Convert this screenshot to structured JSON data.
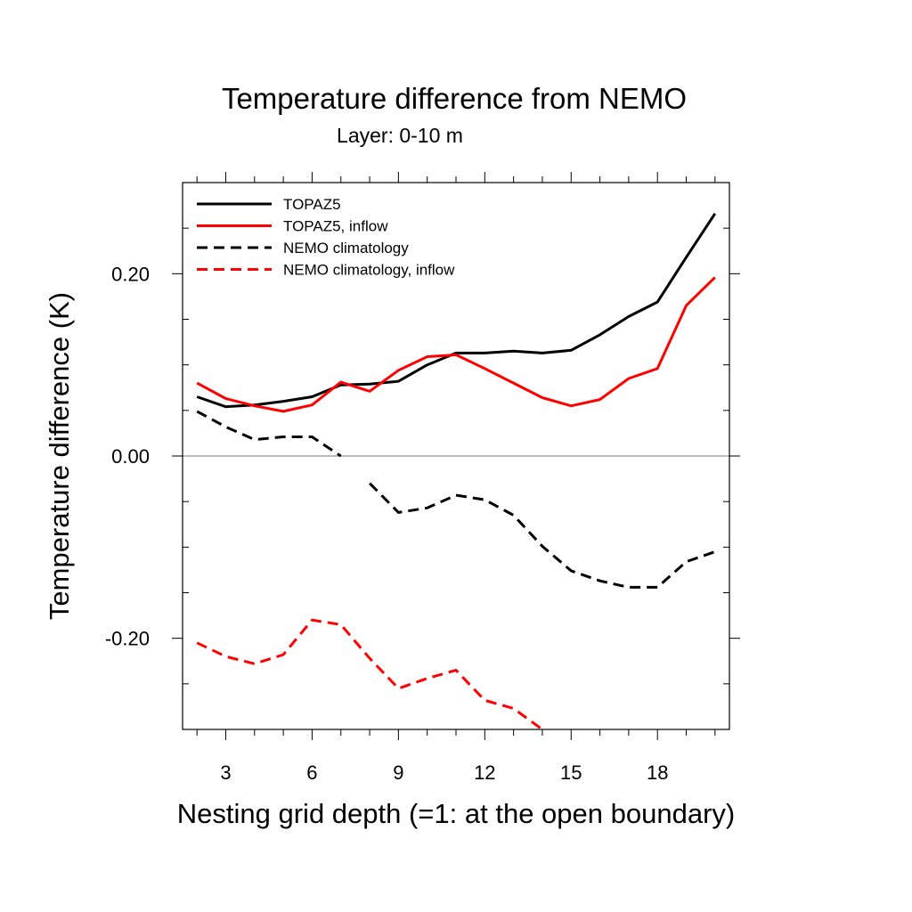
{
  "chart_data": {
    "type": "line",
    "title": "Temperature difference from NEMO",
    "subtitle": "Layer: 0-10 m",
    "xlabel": "Nesting grid depth (=1: at the open boundary)",
    "ylabel": "Temperature difference (K)",
    "xlim": [
      1.5,
      20.5
    ],
    "ylim": [
      -0.3,
      0.3
    ],
    "x_ticks": [
      3,
      6,
      9,
      12,
      15,
      18
    ],
    "x_tick_labels": [
      "3",
      "6",
      "9",
      "12",
      "15",
      "18"
    ],
    "y_ticks": [
      -0.2,
      0.0,
      0.2
    ],
    "y_tick_labels": [
      "-0.20",
      "0.00",
      "0.20"
    ],
    "zero_line": true,
    "legend_position": "top-left",
    "x": [
      2,
      3,
      4,
      5,
      6,
      7,
      8,
      9,
      10,
      11,
      12,
      13,
      14,
      15,
      16,
      17,
      18,
      19,
      20
    ],
    "series": [
      {
        "name": "TOPAZ5",
        "color": "#000000",
        "dash": "solid",
        "values": [
          0.065,
          0.054,
          0.056,
          0.06,
          0.065,
          0.078,
          0.079,
          0.082,
          0.1,
          0.113,
          0.113,
          0.115,
          0.113,
          0.116,
          0.133,
          0.153,
          0.169,
          0.218,
          0.266
        ]
      },
      {
        "name": "TOPAZ5, inflow",
        "color": "#ff0000",
        "dash": "solid",
        "values": [
          0.08,
          0.063,
          0.055,
          0.049,
          0.056,
          0.081,
          0.071,
          0.094,
          0.109,
          0.111,
          0.096,
          0.08,
          0.064,
          0.055,
          0.062,
          0.085,
          0.096,
          0.165,
          0.196
        ]
      },
      {
        "name": "NEMO climatology",
        "color": "#000000",
        "dash": "dashed",
        "values": [
          0.049,
          0.032,
          0.018,
          0.021,
          0.021,
          0.0,
          -0.03,
          -0.062,
          -0.057,
          -0.043,
          -0.048,
          -0.065,
          -0.099,
          -0.126,
          -0.137,
          -0.144,
          -0.144,
          -0.116,
          -0.105
        ]
      },
      {
        "name": "NEMO climatology, inflow",
        "color": "#ff0000",
        "dash": "dashed",
        "values": [
          -0.205,
          -0.22,
          -0.228,
          -0.218,
          -0.18,
          -0.185,
          -0.222,
          -0.255,
          -0.244,
          -0.235,
          -0.268,
          -0.277,
          -0.3,
          null,
          null,
          null,
          null,
          null,
          null
        ]
      }
    ]
  }
}
